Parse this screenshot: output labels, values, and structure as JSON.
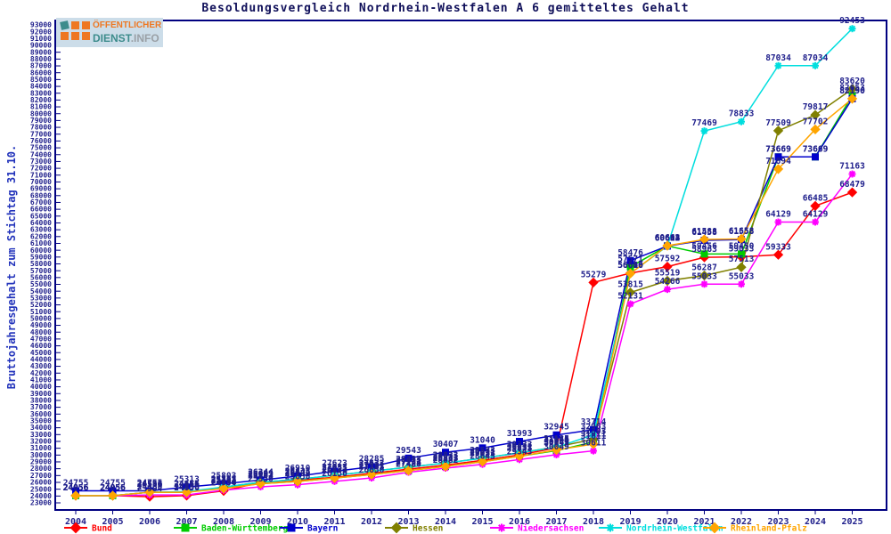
{
  "title": "Besoldungsvergleich Nordrhein-Westfalen A 6 gemitteltes Gehalt",
  "logo": {
    "line1": "ÖFFENTLICHER",
    "line2_teal": "DIENST",
    "line2_gray": ".INFO"
  },
  "chart_data": {
    "type": "line",
    "title": "Besoldungsvergleich Nordrhein-Westfalen A 6 gemitteltes Gehalt",
    "xlabel": "",
    "ylabel": "Bruttojahresgehalt zum Stichtag 31.10.",
    "x": [
      2004,
      2005,
      2006,
      2007,
      2008,
      2009,
      2010,
      2011,
      2012,
      2013,
      2014,
      2015,
      2016,
      2017,
      2018,
      2019,
      2020,
      2021,
      2022,
      2023,
      2024,
      2025
    ],
    "ylim": [
      23000,
      93000
    ],
    "ytick_step": 1000,
    "grid": false,
    "legend_position": "bottom",
    "point_labels": true,
    "axis_color": "#000080",
    "tick_label_color": "#20208c",
    "point_label_color": "#20208c",
    "series": [
      {
        "name": "Bund",
        "color": "#ff0000",
        "marker": "diamond",
        "values": [
          24056,
          24056,
          23904,
          24056,
          24754,
          25992,
          26344,
          26731,
          27331,
          27931,
          28531,
          29231,
          30031,
          31046,
          55279,
          56646,
          57592,
          58963,
          59033,
          59333,
          66485,
          68479
        ]
      },
      {
        "name": "Baden-Württemberg",
        "color": "#00cc00",
        "marker": "square",
        "values": [
          24056,
          24056,
          24556,
          24556,
          25203,
          25803,
          26133,
          26633,
          27133,
          27733,
          28333,
          29033,
          29833,
          30649,
          31911,
          57571,
          60635,
          59456,
          59450,
          73669,
          73669,
          82653
        ]
      },
      {
        "name": "Bayern",
        "color": "#0000cc",
        "marker": "square",
        "values": [
          24755,
          24755,
          24755,
          25313,
          25803,
          26344,
          26910,
          27623,
          28285,
          29543,
          30407,
          31040,
          31993,
          32945,
          33714,
          58476,
          60614,
          61458,
          61558,
          73669,
          73669,
          82190
        ]
      },
      {
        "name": "Hessen",
        "color": "#808000",
        "marker": "diamond",
        "values": [
          24056,
          24056,
          24556,
          24556,
          25313,
          26033,
          26433,
          27033,
          27633,
          28233,
          28833,
          29533,
          30333,
          31185,
          32303,
          53815,
          55519,
          56287,
          57513,
          77509,
          79817,
          83620
        ]
      },
      {
        "name": "Niedersachsen",
        "color": "#ff00ff",
        "marker": "star",
        "values": [
          24056,
          24056,
          24150,
          24150,
          24850,
          25350,
          25650,
          26150,
          26650,
          27480,
          28082,
          28643,
          29343,
          30049,
          30611,
          52131,
          54266,
          55033,
          55033,
          64129,
          64129,
          71163
        ]
      },
      {
        "name": "Nordrhein-Westfalen",
        "color": "#00dede",
        "marker": "star",
        "values": [
          24056,
          24056,
          24556,
          24655,
          25313,
          26033,
          26433,
          27033,
          27633,
          28233,
          28833,
          29533,
          30333,
          31146,
          32963,
          56610,
          60602,
          77469,
          78833,
          87034,
          87034,
          92453
        ]
      },
      {
        "name": "Rheinland-Pfalz",
        "color": "#ffa500",
        "marker": "diamond",
        "values": [
          24056,
          24056,
          24556,
          24556,
          25103,
          25803,
          26133,
          26633,
          27133,
          27733,
          28333,
          29033,
          29833,
          30749,
          31611,
          56600,
          60662,
          61588,
          61658,
          71894,
          77702,
          82190
        ]
      }
    ]
  }
}
